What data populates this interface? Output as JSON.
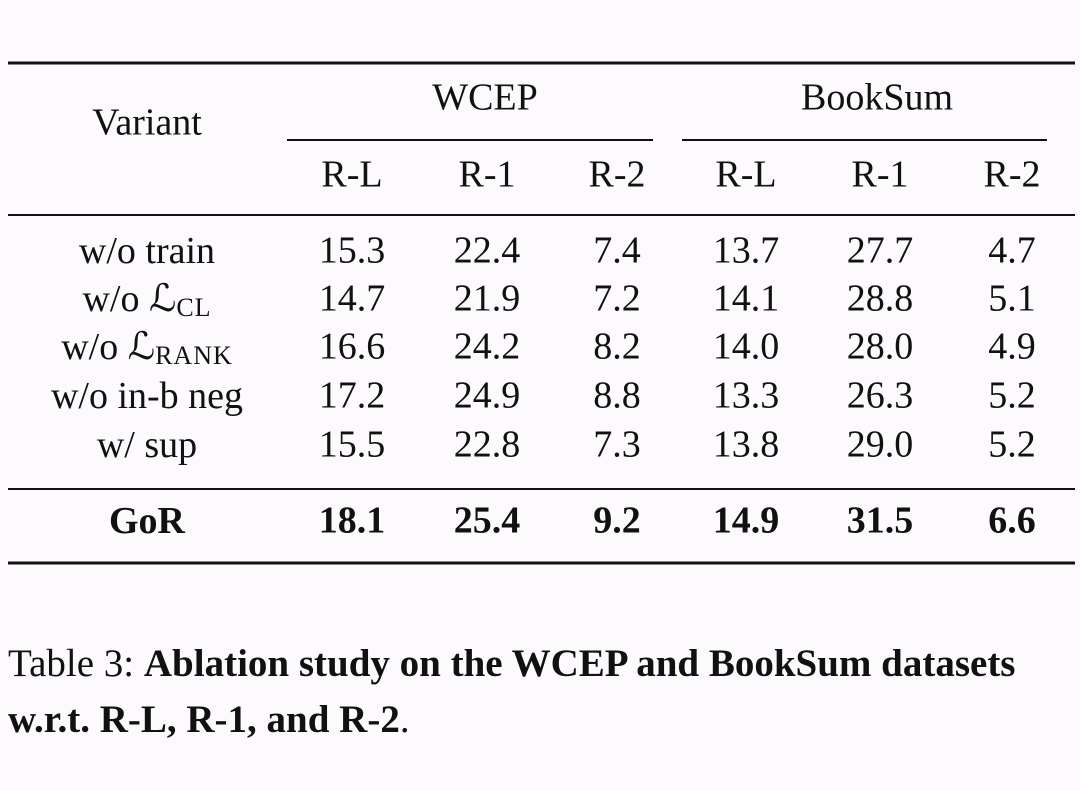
{
  "table": {
    "corner": "Variant",
    "groups": [
      "WCEP",
      "BookSum"
    ],
    "columns": [
      "R-L",
      "R-1",
      "R-2",
      "R-L",
      "R-1",
      "R-2"
    ],
    "rows": [
      {
        "label": "w/o train",
        "cells": [
          "15.3",
          "22.4",
          "7.4",
          "13.7",
          "27.7",
          "4.7"
        ]
      },
      {
        "label": "w/o ℒ",
        "sub": "CL",
        "cells": [
          "14.7",
          "21.9",
          "7.2",
          "14.1",
          "28.8",
          "5.1"
        ]
      },
      {
        "label": "w/o ℒ",
        "sub": "RANK",
        "cells": [
          "16.6",
          "24.2",
          "8.2",
          "14.0",
          "28.0",
          "4.9"
        ]
      },
      {
        "label": "w/o in-b neg",
        "cells": [
          "17.2",
          "24.9",
          "8.8",
          "13.3",
          "26.3",
          "5.2"
        ]
      },
      {
        "label": "w/ sup",
        "cells": [
          "15.5",
          "22.8",
          "7.3",
          "13.8",
          "29.0",
          "5.2"
        ]
      }
    ],
    "final": {
      "label": "GoR",
      "cells": [
        "18.1",
        "25.4",
        "9.2",
        "14.9",
        "31.5",
        "6.6"
      ]
    }
  },
  "caption": {
    "label": "Table 3:",
    "text": "Ablation study on the WCEP and BookSum datasets w.r.t. R-L, R-1, and R-2",
    "end": "."
  }
}
